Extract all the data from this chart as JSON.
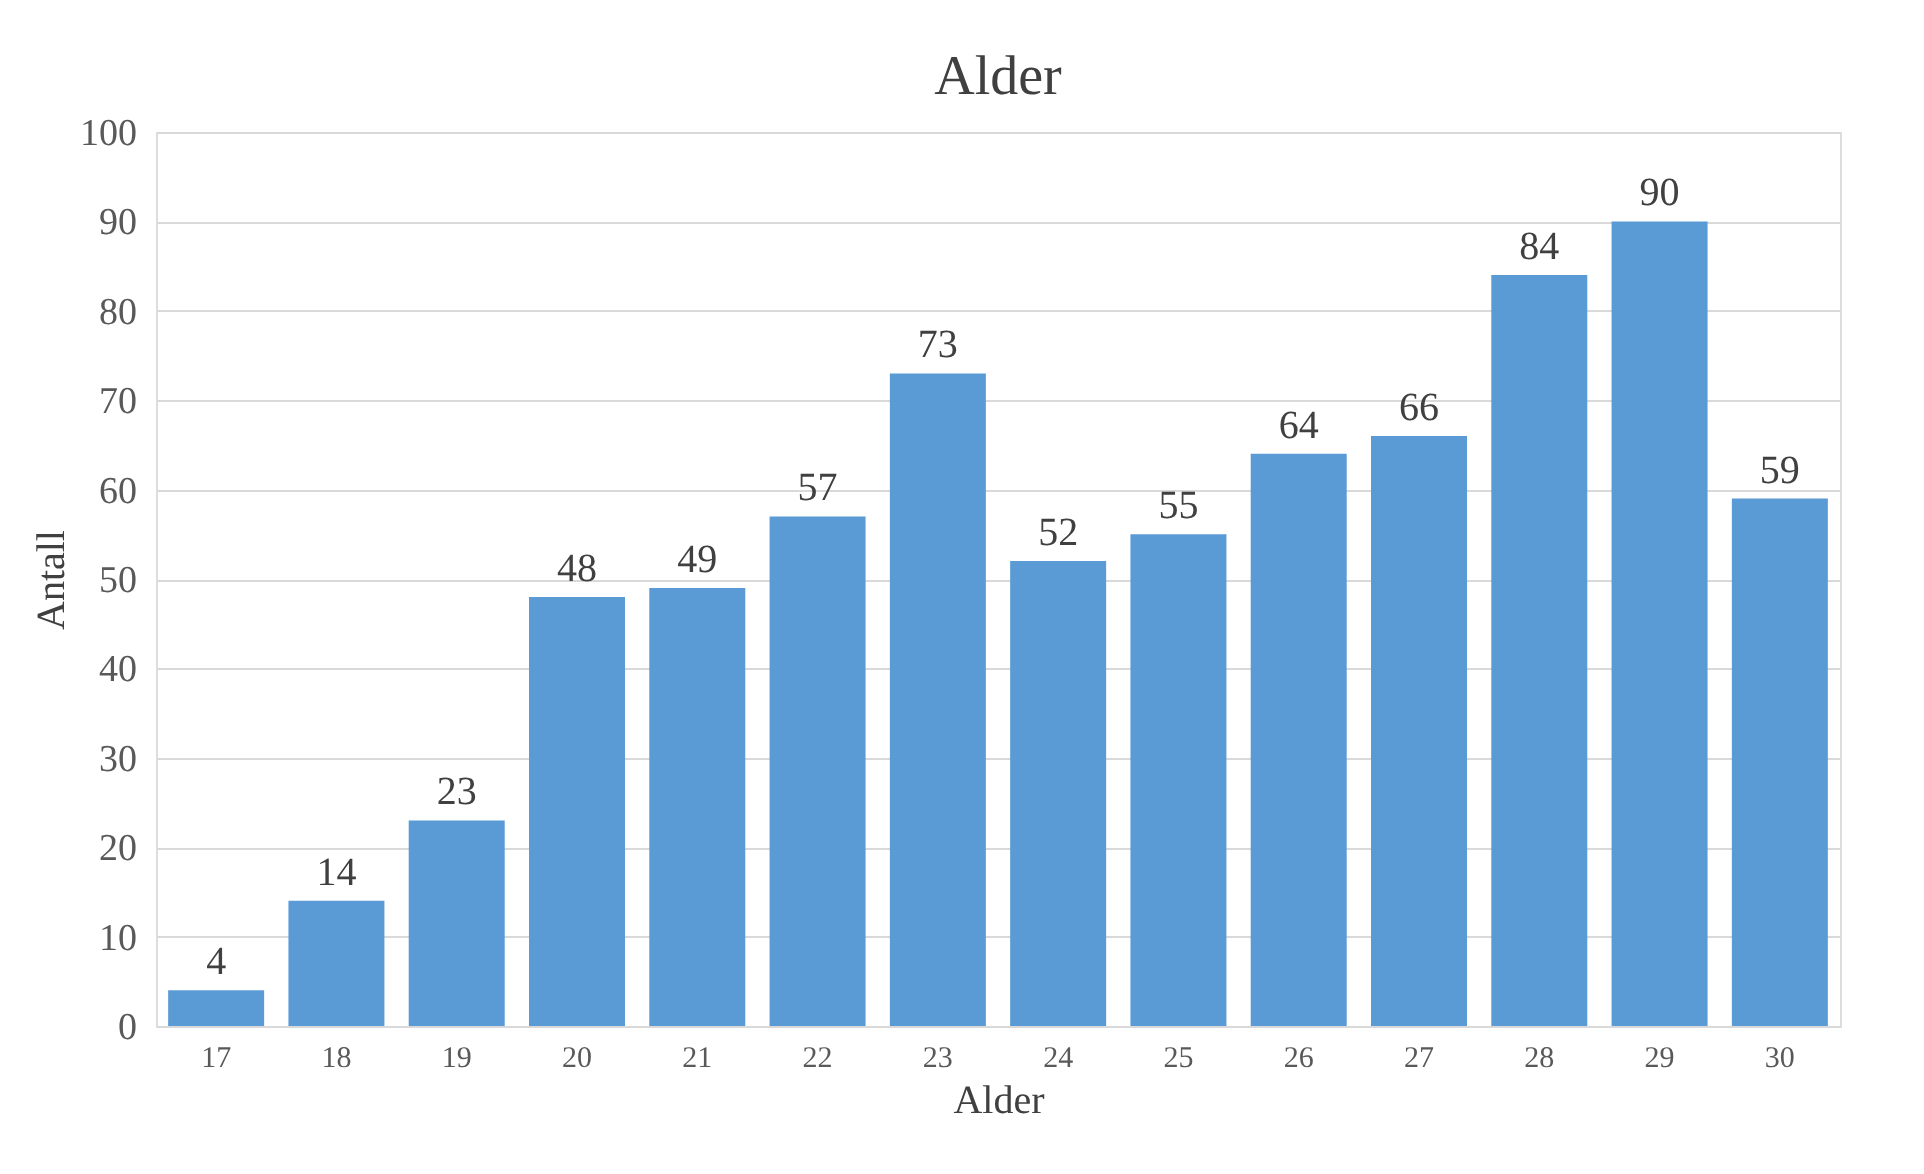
{
  "chart_data": {
    "type": "bar",
    "title": "Alder",
    "xlabel": "Alder",
    "ylabel": "Antall",
    "categories": [
      "17",
      "18",
      "19",
      "20",
      "21",
      "22",
      "23",
      "24",
      "25",
      "26",
      "27",
      "28",
      "29",
      "30"
    ],
    "values": [
      4,
      14,
      23,
      48,
      49,
      57,
      73,
      52,
      55,
      64,
      66,
      84,
      90,
      59
    ],
    "color": "#5b9bd5",
    "ylim": [
      0,
      100
    ],
    "yticks": [
      0,
      10,
      20,
      30,
      40,
      50,
      60,
      70,
      80,
      90,
      100
    ],
    "grid": "y",
    "data_labels": true
  }
}
